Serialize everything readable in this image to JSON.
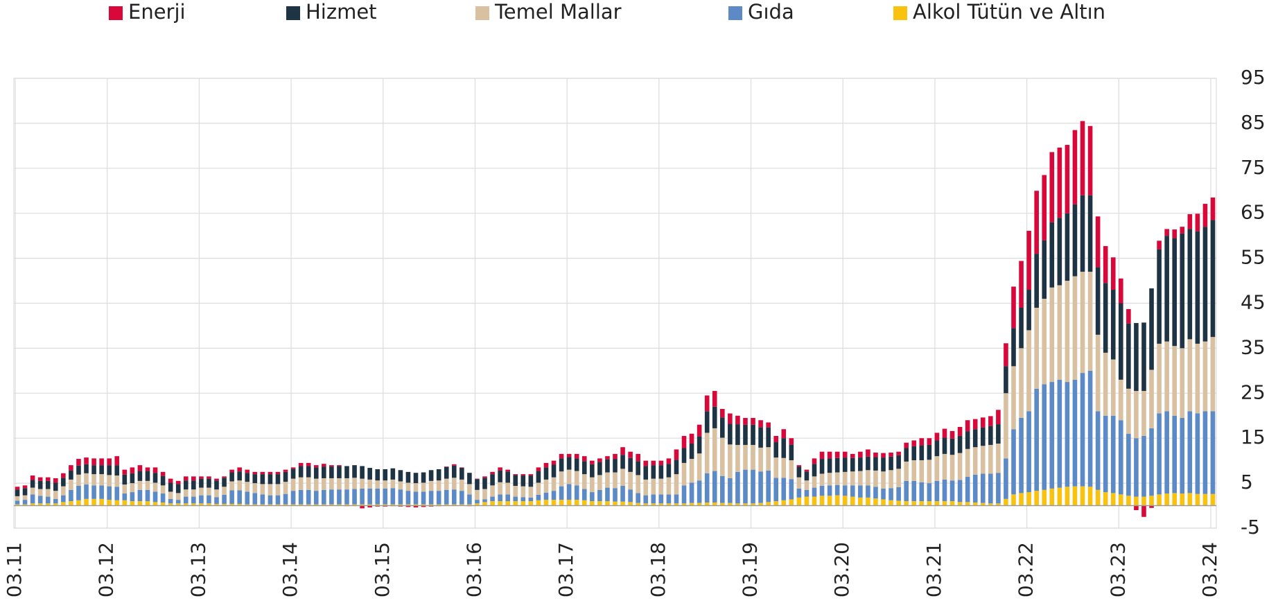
{
  "chart_data": {
    "type": "stacked_bar",
    "categories": [
      "03.11",
      null,
      null,
      null,
      null,
      null,
      null,
      null,
      null,
      null,
      null,
      null,
      "03.12",
      null,
      null,
      null,
      null,
      null,
      null,
      null,
      null,
      null,
      null,
      null,
      "03.13",
      null,
      null,
      null,
      null,
      null,
      null,
      null,
      null,
      null,
      null,
      null,
      "03.14",
      null,
      null,
      null,
      null,
      null,
      null,
      null,
      null,
      null,
      null,
      null,
      "03.15",
      null,
      null,
      null,
      null,
      null,
      null,
      null,
      null,
      null,
      null,
      null,
      "03.16",
      null,
      null,
      null,
      null,
      null,
      null,
      null,
      null,
      null,
      null,
      null,
      "03.17",
      null,
      null,
      null,
      null,
      null,
      null,
      null,
      null,
      null,
      null,
      null,
      "03.18",
      null,
      null,
      null,
      null,
      null,
      null,
      null,
      null,
      null,
      null,
      null,
      "03.19",
      null,
      null,
      null,
      null,
      null,
      null,
      null,
      null,
      null,
      null,
      null,
      "03.20",
      null,
      null,
      null,
      null,
      null,
      null,
      null,
      null,
      null,
      null,
      null,
      "03.21",
      null,
      null,
      null,
      null,
      null,
      null,
      null,
      null,
      null,
      null,
      null,
      "03.22",
      null,
      null,
      null,
      null,
      null,
      null,
      null,
      null,
      null,
      null,
      null,
      "03.23",
      null,
      null,
      null,
      null,
      null,
      null,
      null,
      null,
      null,
      null,
      null,
      "03.24"
    ],
    "series": [
      {
        "name": "Enerji",
        "color": "#d9083a",
        "values": [
          0.6,
          0.6,
          1,
          0.8,
          0.8,
          1,
          1,
          1.2,
          1.5,
          1.5,
          1.5,
          1.5,
          1.5,
          2,
          1.1,
          1.3,
          1.3,
          0.8,
          1.2,
          0.9,
          0.9,
          0.7,
          0.9,
          0.9,
          0.5,
          0.5,
          0.4,
          0.3,
          0.6,
          0.9,
          0.7,
          0.5,
          0.5,
          0.5,
          0.5,
          0.5,
          0.3,
          0.7,
          0.7,
          0.5,
          0.6,
          0.3,
          0.2,
          -0.1,
          0,
          -0.6,
          -0.4,
          -0.2,
          -0.2,
          -0.1,
          -0.2,
          -0.3,
          -0.4,
          -0.3,
          -0.2,
          -0.1,
          0.1,
          0.3,
          0.1,
          -0.1,
          0.1,
          0.3,
          0.5,
          0.7,
          0.4,
          0.2,
          0.3,
          0.3,
          0.8,
          1,
          0.9,
          1,
          0.7,
          1,
          1.1,
          0.8,
          0.8,
          0.7,
          1.1,
          1.7,
          1.4,
          1.6,
          1.2,
          1,
          1,
          1.2,
          2.3,
          2.7,
          2.2,
          2.6,
          3.5,
          3.5,
          1.9,
          2.3,
          1.9,
          1.5,
          1.5,
          1.6,
          1.1,
          1.4,
          2,
          1.4,
          0.3,
          0.4,
          1.2,
          1.6,
          1.5,
          1.4,
          1.3,
          0.9,
          1.3,
          1.6,
          1,
          1,
          0.9,
          0.8,
          1.2,
          1.3,
          1.6,
          1.5,
          1.7,
          2,
          1.7,
          2,
          2.5,
          2.25,
          2.2,
          2.2,
          3.2,
          5.1,
          9.2,
          10.4,
          13.1,
          14,
          14.5,
          15.6,
          15.6,
          15.2,
          16.5,
          16.5,
          15.4,
          11.3,
          8.2,
          7.2,
          5.5,
          3.2,
          -1,
          -2.5,
          -0.5,
          1.9,
          1.5,
          1.9,
          1.5,
          3.3,
          3.9,
          5.1,
          5
        ]
      },
      {
        "name": "Hizmet",
        "color": "#1e3444",
        "values": [
          1.5,
          1.6,
          1.7,
          1.8,
          1.8,
          1.8,
          1.9,
          2,
          2,
          2,
          2,
          2,
          2.2,
          2.3,
          2.2,
          2.2,
          2.2,
          2.2,
          2.2,
          2.1,
          2,
          2,
          2,
          2,
          2,
          2,
          2,
          2,
          2,
          2,
          2,
          2,
          2.2,
          2.2,
          2.2,
          2.2,
          2.2,
          2.5,
          2.5,
          2.5,
          2.6,
          2.6,
          2.7,
          2.7,
          2.8,
          2.8,
          2.6,
          2.5,
          2.5,
          2.5,
          2.5,
          2.4,
          2.3,
          2.3,
          2.4,
          2.5,
          2.6,
          2.7,
          2.6,
          2.5,
          2.4,
          2.5,
          2.5,
          2.6,
          2.5,
          2.4,
          2.4,
          2.5,
          2.6,
          2.7,
          2.8,
          2.9,
          2.8,
          2.8,
          2.9,
          2.9,
          2.9,
          2.9,
          3,
          3.1,
          3.1,
          3.1,
          3,
          3,
          3,
          3,
          3.2,
          3.3,
          3.4,
          3.8,
          4.8,
          4.8,
          4.5,
          4.6,
          4.6,
          4.5,
          4.5,
          4.5,
          4.4,
          3.4,
          4.4,
          3.5,
          2.4,
          2,
          2.8,
          3.3,
          3.2,
          3.2,
          3.2,
          3,
          3,
          3,
          3,
          3.1,
          3,
          3,
          3,
          3.1,
          3.3,
          3.3,
          3.5,
          3.6,
          3.6,
          3.8,
          3.9,
          4,
          4.1,
          4.2,
          4.3,
          6,
          8.5,
          9,
          9,
          12,
          13,
          14.5,
          15,
          15,
          16,
          17,
          17,
          15,
          15.5,
          15.5,
          17,
          14.5,
          15.1,
          15.2,
          18.1,
          21,
          23.5,
          24,
          25.5,
          24.5,
          25,
          25.5,
          26
        ]
      },
      {
        "name": "Temel Mallar",
        "color": "#d8c0a0",
        "values": [
          1,
          1,
          1.5,
          1.5,
          1.7,
          1.8,
          2,
          2.3,
          2.5,
          2.5,
          2.5,
          2.5,
          2.5,
          2.5,
          2,
          2,
          2,
          2,
          2,
          1.8,
          1.6,
          1.5,
          1.6,
          1.6,
          1.7,
          1.7,
          1.7,
          1.8,
          2,
          2.2,
          2.2,
          2.2,
          2.3,
          2.5,
          2.5,
          2.7,
          2.7,
          2.8,
          2.8,
          2.7,
          2.6,
          2.5,
          2.5,
          2.5,
          2.5,
          2.2,
          2,
          1.8,
          1.8,
          1.9,
          1.8,
          1.8,
          1.9,
          2,
          2.2,
          2.3,
          2.5,
          2.6,
          2.5,
          2.3,
          2.2,
          2.3,
          2.5,
          2.7,
          2.6,
          2.4,
          2.4,
          2.4,
          2.7,
          2.9,
          3,
          3.3,
          3.2,
          3.2,
          3.3,
          3.3,
          3.3,
          3.4,
          3.5,
          3.8,
          3.9,
          4,
          3.5,
          3.5,
          3.5,
          3.8,
          4.5,
          5,
          5.3,
          6,
          9,
          9.5,
          8.5,
          7.5,
          6,
          5.5,
          5.5,
          5.3,
          5.2,
          4.5,
          4.4,
          4.2,
          2.5,
          2.1,
          2.5,
          2.7,
          2.8,
          2.8,
          3,
          3.1,
          3.2,
          3.4,
          3.6,
          3.8,
          4,
          4.1,
          4.3,
          4.6,
          4.9,
          5.2,
          5.5,
          5.7,
          5.7,
          6,
          6.2,
          6.1,
          6.2,
          6.4,
          6.5,
          14.5,
          14,
          15.5,
          18,
          18,
          19,
          21,
          21,
          22.5,
          23,
          22.5,
          22,
          17,
          14,
          12.5,
          9,
          10,
          10.5,
          10,
          13,
          15.5,
          15.5,
          15.5,
          15.5,
          16,
          15.5,
          15.5,
          16.5
        ]
      },
      {
        "name": "Gıda",
        "color": "#5b8ac6",
        "values": [
          0.8,
          1,
          2,
          1.7,
          1.5,
          1,
          1.5,
          2.5,
          3.2,
          3.2,
          3,
          3,
          3,
          3,
          1.5,
          2,
          2.5,
          2.5,
          2.3,
          2,
          1,
          0.8,
          1.5,
          1.5,
          1.8,
          1.8,
          1.5,
          2,
          3,
          3,
          2.8,
          2.5,
          2.2,
          2,
          2,
          2.3,
          3,
          3.2,
          3.2,
          3,
          3.2,
          3.3,
          3.3,
          3.3,
          3.4,
          3.5,
          3.5,
          3.5,
          3.5,
          3.6,
          3.3,
          3,
          2.8,
          2.8,
          3,
          3,
          3.2,
          3.3,
          3,
          2.2,
          0.8,
          0.6,
          1,
          1.5,
          1.5,
          1,
          0.9,
          0.8,
          1.2,
          1.6,
          2,
          3,
          3.5,
          3.2,
          2.5,
          2,
          2.5,
          3,
          3,
          3.5,
          2.8,
          2.2,
          1.8,
          2,
          2,
          2,
          2,
          4,
          4.5,
          5,
          6.5,
          7,
          6,
          5.5,
          7,
          7.5,
          7.5,
          7,
          7,
          5.2,
          5,
          4.5,
          2,
          1.5,
          2,
          2.2,
          2.3,
          2.3,
          2.3,
          2.5,
          2.7,
          2.7,
          2.6,
          2.4,
          2.7,
          3,
          4.5,
          4.5,
          4.2,
          4,
          4.5,
          4.8,
          4.6,
          4.9,
          5.6,
          6.2,
          6.5,
          6.6,
          6.8,
          9,
          14.5,
          16.7,
          18,
          22.7,
          23.5,
          23.7,
          24,
          23.3,
          23.7,
          25.2,
          25.8,
          17.5,
          17,
          17.2,
          16.5,
          13.8,
          13,
          13.5,
          15,
          18,
          18.3,
          17.2,
          16.8,
          18.2,
          17.9,
          18.4,
          18.4
        ]
      },
      {
        "name": "Alkol Tütün ve Altın",
        "color": "#f9c20f",
        "values": [
          0.3,
          0.3,
          0.5,
          0.5,
          0.5,
          0.5,
          0.8,
          1,
          1.2,
          1.5,
          1.5,
          1.5,
          1.3,
          1.2,
          1.2,
          1,
          1,
          1,
          0.8,
          0.7,
          0.5,
          0.5,
          0.5,
          0.5,
          0.5,
          0.5,
          0.4,
          0.4,
          0.4,
          0.4,
          0.3,
          0.3,
          0.3,
          0.3,
          0.3,
          0.3,
          0.3,
          0.3,
          0.3,
          0.3,
          0.3,
          0.3,
          0.3,
          0.3,
          0.3,
          0.3,
          0.3,
          0.3,
          0.3,
          0.3,
          0.3,
          0.3,
          0.3,
          0.3,
          0.3,
          0.3,
          0.3,
          0.3,
          0.3,
          0.3,
          0.5,
          0.8,
          1,
          1,
          1,
          1,
          1,
          1,
          1.2,
          1.3,
          1.3,
          1.3,
          1.3,
          1.3,
          1.2,
          1,
          1,
          1,
          0.9,
          0.9,
          0.8,
          0.6,
          0.5,
          0.5,
          0.5,
          0.5,
          0.5,
          0.5,
          0.6,
          0.6,
          0.7,
          0.7,
          0.6,
          0.6,
          0.5,
          0.5,
          0.5,
          0.6,
          0.8,
          1,
          1.2,
          1.4,
          1.8,
          2,
          2,
          2.2,
          2.2,
          2.3,
          2.2,
          2,
          1.8,
          1.8,
          1.6,
          1.4,
          1.2,
          1.1,
          1,
          1,
          1,
          1,
          1,
          1,
          1,
          0.8,
          0.8,
          0.7,
          0.6,
          0.5,
          0.5,
          1.5,
          2.5,
          2.8,
          3,
          3.3,
          3.5,
          3.8,
          4,
          4.2,
          4.3,
          4.3,
          4.2,
          3.5,
          3,
          2.8,
          2.5,
          2.2,
          2,
          2,
          2.2,
          2.5,
          2.7,
          2.8,
          2.7,
          2.8,
          2.6,
          2.6,
          2.6
        ]
      }
    ],
    "ylim": [
      -5,
      95
    ],
    "yticks": [
      -5,
      5,
      15,
      25,
      35,
      45,
      55,
      65,
      75,
      85,
      95
    ],
    "grid": true,
    "legend": "top"
  }
}
